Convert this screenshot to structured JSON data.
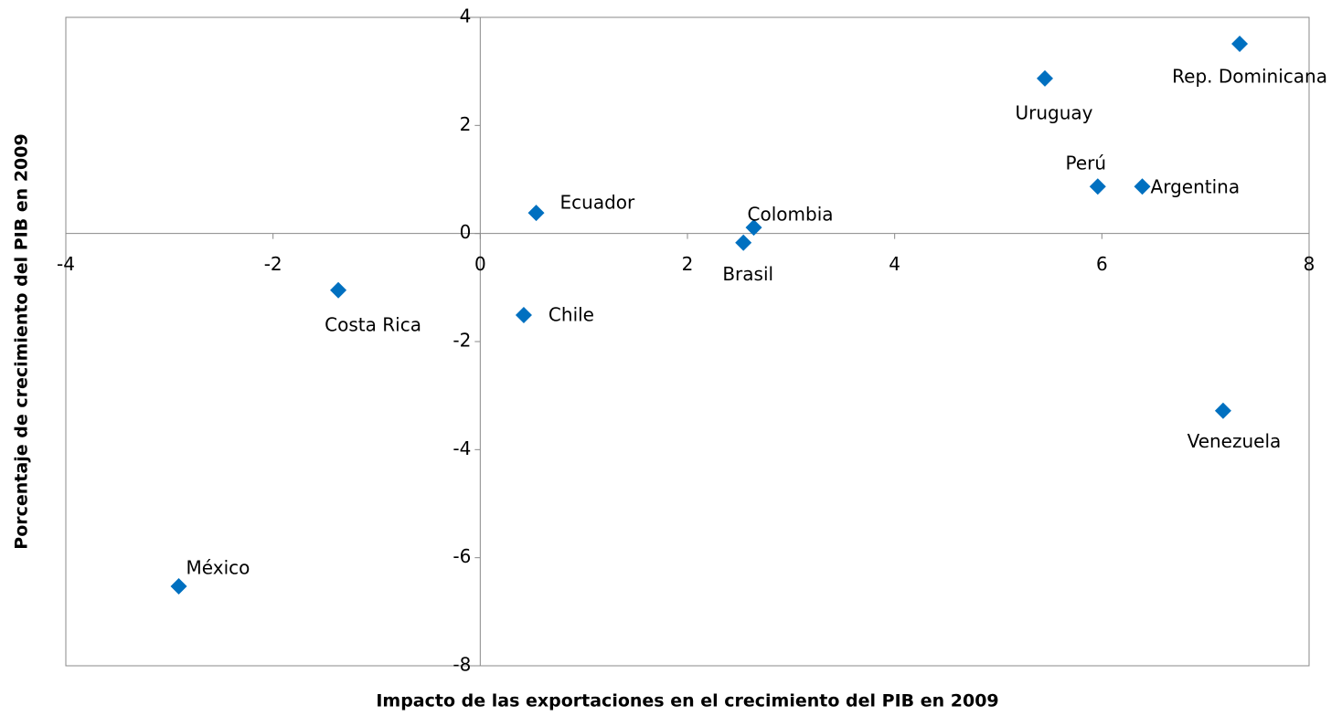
{
  "chart_data": {
    "type": "scatter",
    "xlabel": "Impacto de las exportaciones en el crecimiento del PIB en 2009",
    "ylabel": "Porcentaje de crecimiento del PIB en 2009",
    "labels": [
      "Rep. Dominicana",
      "Uruguay",
      "Perú",
      "Argentina",
      "Ecuador",
      "Colombia",
      "Brasil",
      "Chile",
      "Costa Rica",
      "Venezuela",
      "México"
    ],
    "x": [
      7.33,
      5.45,
      5.96,
      6.39,
      0.54,
      2.64,
      2.54,
      0.42,
      -1.37,
      7.17,
      -2.91
    ],
    "values": [
      3.51,
      2.87,
      0.87,
      0.87,
      0.38,
      0.11,
      -0.17,
      -1.51,
      -1.05,
      -3.28,
      -6.53
    ],
    "color": "#0070c0",
    "xlim": [
      -4,
      8
    ],
    "xticks": [
      -4,
      -2,
      0,
      2,
      4,
      6,
      8
    ],
    "ylim": [
      -8,
      4
    ],
    "yticks": [
      -8,
      -6,
      -4,
      -2,
      0,
      2,
      4
    ]
  }
}
